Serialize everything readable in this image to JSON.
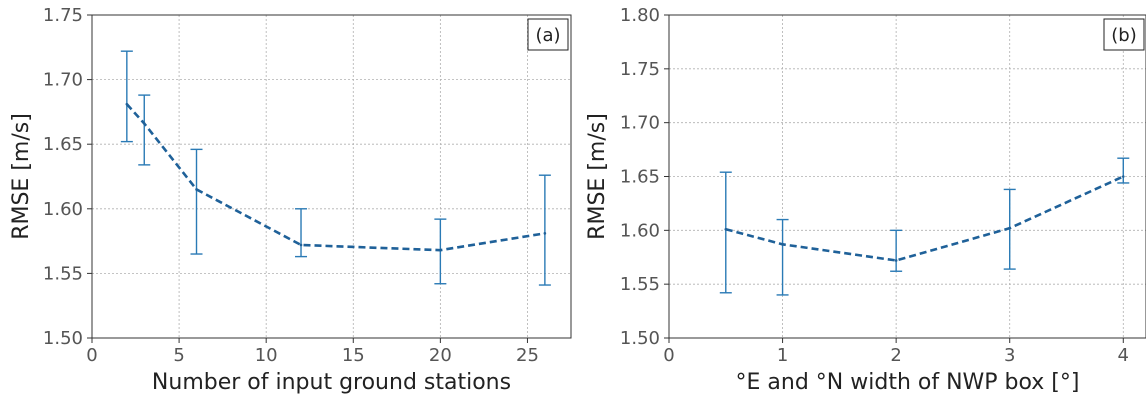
{
  "colors": {
    "series": "#1f6199",
    "errorbar": "#2a7ab5"
  },
  "chart_data": [
    {
      "type": "line",
      "panel_label": "(a)",
      "xlabel": "Number of input ground stations",
      "ylabel": "RMSE [m/s]",
      "xlim": [
        0,
        27.5
      ],
      "ylim": [
        1.5,
        1.75
      ],
      "xticks": [
        0,
        5,
        10,
        15,
        20,
        25
      ],
      "yticks": [
        1.5,
        1.55,
        1.6,
        1.65,
        1.7,
        1.75
      ],
      "ytick_labels": [
        "1.50",
        "1.55",
        "1.60",
        "1.65",
        "1.70",
        "1.75"
      ],
      "grid": true,
      "x": [
        2,
        3,
        6,
        12,
        20,
        26
      ],
      "y": [
        1.681,
        1.666,
        1.615,
        1.572,
        1.568,
        1.581
      ],
      "err_low": [
        1.652,
        1.634,
        1.565,
        1.563,
        1.542,
        1.541
      ],
      "err_high": [
        1.722,
        1.688,
        1.646,
        1.6,
        1.592,
        1.626
      ]
    },
    {
      "type": "line",
      "panel_label": "(b)",
      "xlabel": "°E and °N width of NWP box [°]",
      "ylabel": "RMSE [m/s]",
      "xlim": [
        0,
        4.2
      ],
      "ylim": [
        1.5,
        1.8
      ],
      "xticks": [
        0,
        1,
        2,
        3,
        4
      ],
      "yticks": [
        1.5,
        1.55,
        1.6,
        1.65,
        1.7,
        1.75,
        1.8
      ],
      "ytick_labels": [
        "1.50",
        "1.55",
        "1.60",
        "1.65",
        "1.70",
        "1.75",
        "1.80"
      ],
      "grid": true,
      "x": [
        0.5,
        1,
        2,
        3,
        4
      ],
      "y": [
        1.601,
        1.587,
        1.572,
        1.602,
        1.65
      ],
      "err_low": [
        1.542,
        1.54,
        1.562,
        1.564,
        1.644
      ],
      "err_high": [
        1.654,
        1.61,
        1.6,
        1.638,
        1.667
      ]
    }
  ]
}
